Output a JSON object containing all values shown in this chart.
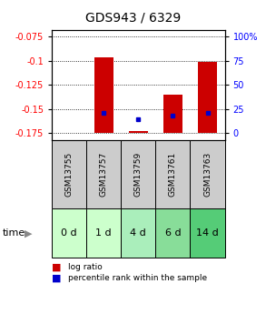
{
  "title": "GDS943 / 6329",
  "samples": [
    "GSM13755",
    "GSM13757",
    "GSM13759",
    "GSM13761",
    "GSM13763"
  ],
  "time_labels": [
    "0 d",
    "1 d",
    "4 d",
    "6 d",
    "14 d"
  ],
  "log_ratios": [
    -0.1748,
    -0.097,
    -0.173,
    -0.135,
    -0.101
  ],
  "percentile_ranks": [
    null,
    20.5,
    14.5,
    18.5,
    20.5
  ],
  "y_min": -0.182,
  "y_max": -0.068,
  "y_ticks": [
    -0.175,
    -0.15,
    -0.125,
    -0.1,
    -0.075
  ],
  "right_y_ticks": [
    0,
    25,
    50,
    75,
    100
  ],
  "bar_color": "#cc0000",
  "dot_color": "#0000cc",
  "baseline": -0.175,
  "bar_width": 0.55,
  "title_fontsize": 10,
  "tick_fontsize": 7,
  "label_fontsize": 8,
  "gsm_label_fontsize": 6.5,
  "time_label_fontsize": 8,
  "time_row_colors": [
    "#ccffcc",
    "#ccffcc",
    "#aaeebb",
    "#88dd99",
    "#55cc77"
  ],
  "gsm_row_color": "#cccccc",
  "legend_labels": [
    "log ratio",
    "percentile rank within the sample"
  ],
  "legend_fontsize": 6.5
}
